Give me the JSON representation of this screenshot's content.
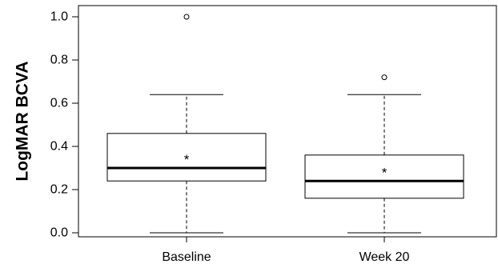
{
  "chart_data": {
    "type": "boxplot",
    "title": "",
    "xlabel": "",
    "ylabel": "LogMAR BCVA",
    "ylim": [
      -0.05,
      1.05
    ],
    "y_ticks": [
      0.0,
      0.2,
      0.4,
      0.6,
      0.8,
      1.0
    ],
    "y_tick_labels": [
      "0.0",
      "0.2",
      "0.4",
      "0.6",
      "0.8",
      "1.0"
    ],
    "grid": false,
    "legend": "none",
    "categories": [
      "Baseline",
      "Week 20"
    ],
    "boxes": [
      {
        "name": "Baseline",
        "whisker_low": 0.0,
        "q1": 0.24,
        "median": 0.3,
        "q3": 0.46,
        "whisker_high": 0.64,
        "mean": 0.34,
        "outliers": [
          1.0
        ]
      },
      {
        "name": "Week 20",
        "whisker_low": 0.0,
        "q1": 0.16,
        "median": 0.24,
        "q3": 0.36,
        "whisker_high": 0.64,
        "mean": 0.28,
        "outliers": [
          0.72
        ]
      }
    ],
    "mean_marker": "*",
    "colors": {
      "box_fill": "#ffffff",
      "line": "#000000"
    }
  }
}
